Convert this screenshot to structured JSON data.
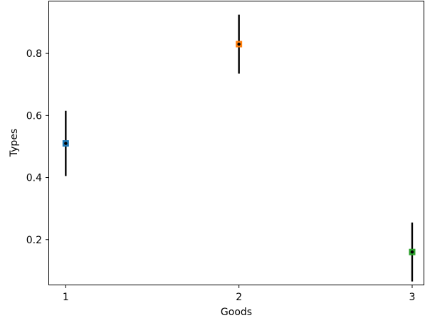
{
  "chart_data": {
    "type": "scatter",
    "title": "",
    "xlabel": "Goods",
    "ylabel": "Types",
    "xlim": [
      0.9,
      3.07
    ],
    "ylim": [
      0.055,
      0.97
    ],
    "grid": false,
    "legend": "none",
    "x_ticks": [
      {
        "value": 1,
        "label": "1"
      },
      {
        "value": 2,
        "label": "2"
      },
      {
        "value": 3,
        "label": "3"
      }
    ],
    "y_ticks": [
      {
        "value": 0.2,
        "label": "0.2"
      },
      {
        "value": 0.4,
        "label": "0.4"
      },
      {
        "value": 0.6,
        "label": "0.6"
      },
      {
        "value": 0.8,
        "label": "0.8"
      }
    ],
    "points": [
      {
        "x": 1,
        "y": 0.51,
        "error_low": 0.405,
        "error_high": 0.615,
        "color": "#1f77b4"
      },
      {
        "x": 2,
        "y": 0.83,
        "error_low": 0.735,
        "error_high": 0.925,
        "color": "#ff7f0e"
      },
      {
        "x": 3,
        "y": 0.16,
        "error_low": 0.065,
        "error_high": 0.255,
        "color": "#2ca02c"
      }
    ]
  }
}
